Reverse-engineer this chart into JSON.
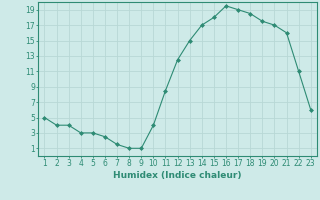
{
  "x": [
    1,
    2,
    3,
    4,
    5,
    6,
    7,
    8,
    9,
    10,
    11,
    12,
    13,
    14,
    15,
    16,
    17,
    18,
    19,
    20,
    21,
    22,
    23
  ],
  "y": [
    5,
    4,
    4,
    3,
    3,
    2.5,
    1.5,
    1,
    1,
    4,
    8.5,
    12.5,
    15,
    17,
    18,
    19.5,
    19,
    18.5,
    17.5,
    17,
    16,
    11,
    6
  ],
  "xlabel": "Humidex (Indice chaleur)",
  "ylabel": "",
  "ylim": [
    0,
    20
  ],
  "xlim": [
    0.5,
    23.5
  ],
  "yticks": [
    1,
    3,
    5,
    7,
    9,
    11,
    13,
    15,
    17,
    19
  ],
  "xticks": [
    1,
    2,
    3,
    4,
    5,
    6,
    7,
    8,
    9,
    10,
    11,
    12,
    13,
    14,
    15,
    16,
    17,
    18,
    19,
    20,
    21,
    22,
    23
  ],
  "line_color": "#2e8b74",
  "marker": "D",
  "marker_size": 2,
  "bg_color": "#ceeae8",
  "grid_color": "#b8d8d5",
  "xlabel_fontsize": 6.5,
  "tick_fontsize": 5.5
}
